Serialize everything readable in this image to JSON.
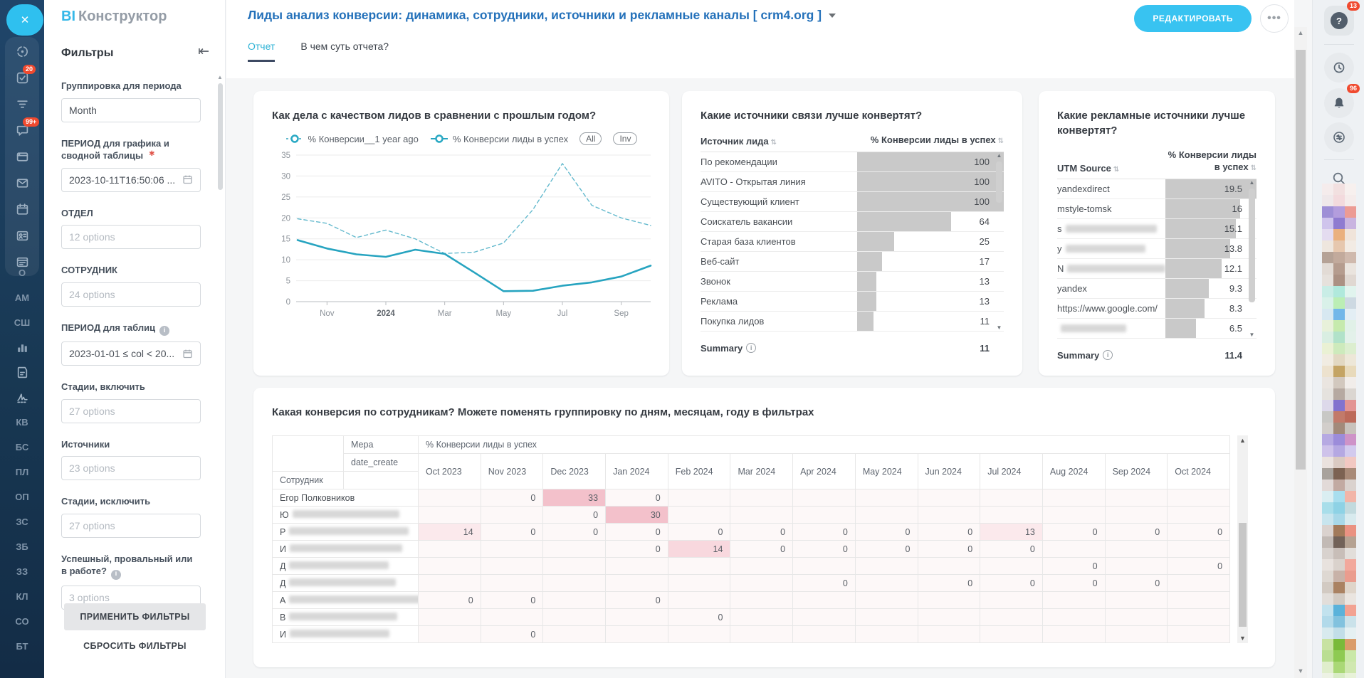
{
  "app": {
    "logo_primary": "BI",
    "logo_secondary": "Конструктор",
    "close_glyph": "✕"
  },
  "left_rail": {
    "apps": [
      {
        "icon": "pulse-icon"
      },
      {
        "icon": "tasks-icon",
        "badge": "20"
      },
      {
        "icon": "crm-funnel-icon"
      },
      {
        "icon": "messenger-icon",
        "badge": "99+"
      },
      {
        "icon": "sites-icon"
      },
      {
        "icon": "mail-icon"
      },
      {
        "icon": "calendar-icon"
      },
      {
        "icon": "contacts-icon"
      },
      {
        "icon": "automation-icon"
      }
    ],
    "shortcuts": [
      {
        "label": "О"
      },
      {
        "label": "АМ"
      },
      {
        "label": "СШ"
      },
      {
        "icon": "bar-chart-icon"
      },
      {
        "icon": "form-icon"
      },
      {
        "icon": "signature-icon"
      },
      {
        "label": "КВ"
      },
      {
        "label": "БС"
      },
      {
        "label": "ПЛ"
      },
      {
        "label": "ОП"
      },
      {
        "label": "ЗС"
      },
      {
        "label": "ЗБ"
      },
      {
        "label": "ЗЗ"
      },
      {
        "label": "КЛ"
      },
      {
        "label": "СО"
      },
      {
        "label": "БТ"
      }
    ]
  },
  "filters": {
    "title": "Фильтры",
    "apply_label": "ПРИМЕНИТЬ ФИЛЬТРЫ",
    "reset_label": "СБРОСИТЬ ФИЛЬТРЫ",
    "groups": [
      {
        "name": "period-grouping",
        "label": "Группировка для периода",
        "value": "Month",
        "type": "select",
        "filled": true
      },
      {
        "name": "chart-period",
        "label": "ПЕРИОД для графика и сводной таблицы",
        "required": true,
        "value": "2023-10-11T16:50:06 ...",
        "type": "date",
        "filled": true
      },
      {
        "name": "department",
        "label": "ОТДЕЛ",
        "value": "12 options",
        "type": "select"
      },
      {
        "name": "employee",
        "label": "СОТРУДНИК",
        "value": "24 options",
        "type": "select"
      },
      {
        "name": "table-period",
        "label": "ПЕРИОД для таблиц",
        "info": true,
        "value": "2023-01-01 ≤ col < 20...",
        "type": "date",
        "filled": true
      },
      {
        "name": "stages-include",
        "label": "Стадии, включить",
        "value": "27 options",
        "type": "select"
      },
      {
        "name": "sources",
        "label": "Источники",
        "value": "23 options",
        "type": "select"
      },
      {
        "name": "stages-exclude",
        "label": "Стадии, исключить",
        "value": "27 options",
        "type": "select"
      },
      {
        "name": "success-fail-progress",
        "label": "Успешный, провальный или в работе?",
        "info": true,
        "value": "3 options",
        "type": "select"
      }
    ]
  },
  "header": {
    "title": "Лиды анализ конверсии: динамика, сотрудники, источники и рекламные каналы [ crm4.org ]",
    "edit_label": "РЕДАКТИРОВАТЬ",
    "more_label": "•••",
    "tabs": [
      {
        "label": "Отчет",
        "active": true
      },
      {
        "label": "В чем суть отчета?",
        "active": false
      }
    ]
  },
  "right_rail": {
    "help_glyph": "?",
    "help_badge": "13",
    "notifications_badge": "96",
    "mosaic_rows": [
      [
        "#f5ecec",
        "#f2e0e0",
        "#f7f0ee"
      ],
      [
        "#efe8ea",
        "#f3dadd",
        "#f5eceb"
      ],
      [
        "#9e8fd6",
        "#b39ddd",
        "#ec9b94"
      ],
      [
        "#cfc4ec",
        "#8f7bd0",
        "#c9b4e0"
      ],
      [
        "#e4dcf0",
        "#eab07e",
        "#f0e4da"
      ],
      [
        "#eee6de",
        "#e6c7ae",
        "#f2ebe4"
      ],
      [
        "#b5a296",
        "#c2aa9c",
        "#cfb9ad"
      ],
      [
        "#e2dbd5",
        "#b59c8e",
        "#eae4de"
      ],
      [
        "#e6e1dc",
        "#ab9183",
        "#e0d8d2"
      ],
      [
        "#c9ede6",
        "#b0e9dc",
        "#e1f4ee"
      ],
      [
        "#d9f1e9",
        "#bbeeb5",
        "#cdd9e2"
      ],
      [
        "#d7e8f1",
        "#72b7e9",
        "#e3eef4"
      ],
      [
        "#e8f1da",
        "#c6eaad",
        "#e1f1e8"
      ],
      [
        "#d9eee2",
        "#b1e2c9",
        "#e3f1ea"
      ],
      [
        "#eaf1d4",
        "#cdeabc",
        "#dceecf"
      ],
      [
        "#f1ece2",
        "#e2d8c2",
        "#ede7d8"
      ],
      [
        "#ede2ce",
        "#c4a464",
        "#e8dabb"
      ],
      [
        "#eae5e0",
        "#d2c8be",
        "#f1edea"
      ],
      [
        "#e5e2de",
        "#b6a9a1",
        "#dbd6d1"
      ],
      [
        "#ddd9ea",
        "#8273ce",
        "#e39493"
      ],
      [
        "#c8c8c5",
        "#c27a6a",
        "#bc6a5a"
      ],
      [
        "#d2cecb",
        "#a28a7a",
        "#c8c2bc"
      ],
      [
        "#b6a9e2",
        "#9c8cda",
        "#ce93c8"
      ],
      [
        "#cec2ea",
        "#b5a8e2",
        "#d2caee"
      ],
      [
        "#eae2de",
        "#dacac2",
        "#f2c8c2"
      ],
      [
        "#a8a29c",
        "#7c6252",
        "#a88a78"
      ],
      [
        "#e2dad8",
        "#c2aaa2",
        "#dad2ce"
      ],
      [
        "#daeef2",
        "#a8deee",
        "#f2b5a8"
      ],
      [
        "#a8deea",
        "#8ed2e5",
        "#c2dade"
      ],
      [
        "#c8e5ee",
        "#a8d8e8",
        "#d8eaee"
      ],
      [
        "#dad2ce",
        "#a27a5a",
        "#ea9282"
      ],
      [
        "#c2bab5",
        "#726258",
        "#b5a292"
      ],
      [
        "#d8d2ce",
        "#c8beb8",
        "#e2deda"
      ],
      [
        "#e8e2de",
        "#dad2cc",
        "#f2a89c"
      ],
      [
        "#ded8d2",
        "#c8b2a8",
        "#ea9c8e"
      ],
      [
        "#d2cac2",
        "#aa8262",
        "#dfd5ca"
      ],
      [
        "#e2deda",
        "#d2cac2",
        "#eae5e0"
      ],
      [
        "#c2e2ee",
        "#5ab2da",
        "#f2a292"
      ],
      [
        "#b2daea",
        "#82c2de",
        "#cae2ea"
      ],
      [
        "#d8eaee",
        "#c2dee8",
        "#e5f0f2"
      ],
      [
        "#c8e2a2",
        "#7aba3a",
        "#da9c6a"
      ],
      [
        "#bade92",
        "#8eca52",
        "#cae8a8"
      ],
      [
        "#e0eecc",
        "#aad876",
        "#d0e8b0"
      ],
      [
        "#edf2e4",
        "#d8ecc4",
        "#e8f2d8"
      ]
    ]
  },
  "chart_data": [
    {
      "type": "line",
      "title": "Как дела с качеством лидов в сравнении с прошлым годом?",
      "x": [
        "Oct 2023",
        "Nov 2023",
        "Dec 2023",
        "Jan 2024",
        "Feb 2024",
        "Mar 2024",
        "Apr 2024",
        "May 2024",
        "Jun 2024",
        "Jul 2024",
        "Aug 2024",
        "Sep 2024",
        "Oct 2024"
      ],
      "x_tick_labels": [
        {
          "index": 1,
          "label": "Nov",
          "bold": false
        },
        {
          "index": 3,
          "label": "2024",
          "bold": true
        },
        {
          "index": 5,
          "label": "Mar",
          "bold": false
        },
        {
          "index": 7,
          "label": "May",
          "bold": false
        },
        {
          "index": 9,
          "label": "Jul",
          "bold": false
        },
        {
          "index": 11,
          "label": "Sep",
          "bold": false
        }
      ],
      "ylim": [
        0,
        35
      ],
      "yticks": [
        0,
        5,
        10,
        15,
        20,
        25,
        30,
        35
      ],
      "grid": true,
      "legend_position": "top",
      "legend_buttons": [
        "All",
        "Inv"
      ],
      "series": [
        {
          "name": "% Конверсии__1 year ago",
          "style": "dashed",
          "color": "#63b9cd",
          "values": [
            19.8,
            18.7,
            15.3,
            17.1,
            15.0,
            11.5,
            11.8,
            14.0,
            22.0,
            33.0,
            23.0,
            20.0,
            18.2
          ]
        },
        {
          "name": "% Конверсии лиды в успех",
          "style": "solid",
          "color": "#27a4c0",
          "values": [
            14.7,
            12.7,
            11.3,
            10.7,
            12.4,
            11.4,
            7.0,
            2.5,
            2.6,
            3.8,
            4.6,
            6.0,
            8.6
          ]
        }
      ]
    },
    {
      "type": "table",
      "title": "Какие источники связи лучше конвертят?",
      "columns": [
        "Источник лида",
        "% Конверсии лиды в успех"
      ],
      "bar_max": 100,
      "bar_color": "#c9c9c9",
      "rows": [
        {
          "name": "По рекомендации",
          "value": 100
        },
        {
          "name": "AVITO - Открытая линия",
          "value": 100
        },
        {
          "name": "Существующий клиент",
          "value": 100
        },
        {
          "name": "Соискатель вакансии",
          "value": 64
        },
        {
          "name": "Старая база клиентов",
          "value": 25
        },
        {
          "name": "Веб-сайт",
          "value": 17
        },
        {
          "name": "Звонок",
          "value": 13
        },
        {
          "name": "Реклама",
          "value": 13
        },
        {
          "name": "Покупка лидов",
          "value": 11
        }
      ],
      "summary_label": "Summary",
      "summary_value": "11"
    },
    {
      "type": "table",
      "title": "Какие рекламные источники лучше конвертят?",
      "columns": [
        "UTM Source",
        "% Конверсии лиды в успех"
      ],
      "bar_max": 19.5,
      "bar_color": "#c9c9c9",
      "rows": [
        {
          "name": "yandexdirect",
          "value": 19.5
        },
        {
          "name": "mstyle-tomsk",
          "value": 16
        },
        {
          "name": "s",
          "value": 15.1,
          "redacted": true,
          "redact_w": 128
        },
        {
          "name": "y",
          "value": 13.8,
          "redacted": true,
          "redact_w": 112
        },
        {
          "name": "N",
          "value": 12.1,
          "redacted": true,
          "redact_w": 140
        },
        {
          "name": "yandex",
          "value": 9.3
        },
        {
          "name": "https://www.google.com/",
          "value": 8.3
        },
        {
          "name": "",
          "value": 6.5,
          "redacted": true,
          "redact_w": 92
        }
      ],
      "summary_label": "Summary",
      "summary_value": "11.4"
    },
    {
      "type": "heatmap-table",
      "title": "Какая конверсия по сотрудникам? Можете поменять группировку по дням, месяцам, году в фильтрах",
      "measure_label": "Мера",
      "measure_value": "% Конверсии лиды в успех",
      "date_label": "date_create",
      "row_dim_label": "Сотрудник",
      "columns": [
        "Oct 2023",
        "Nov 2023",
        "Dec 2023",
        "Jan 2024",
        "Feb 2024",
        "Mar 2024",
        "Apr 2024",
        "May 2024",
        "Jun 2024",
        "Jul 2024",
        "Aug 2024",
        "Sep 2024",
        "Oct 2024"
      ],
      "rows": [
        {
          "name": "Егор Полковников",
          "redacted": false,
          "redact_w": 0,
          "values": [
            "",
            "0",
            "33",
            "0",
            "",
            "",
            "",
            "",
            "",
            "",
            "",
            "",
            ""
          ],
          "highlights": {
            "2": "strong"
          }
        },
        {
          "name": "Ю",
          "redacted": true,
          "redact_w": 150,
          "values": [
            "",
            "",
            "0",
            "30",
            "",
            "",
            "",
            "",
            "",
            "",
            "",
            "",
            ""
          ],
          "highlights": {
            "3": "strong"
          }
        },
        {
          "name": "Р",
          "redacted": true,
          "redact_w": 168,
          "values": [
            "14",
            "0",
            "0",
            "0",
            "0",
            "0",
            "0",
            "0",
            "0",
            "13",
            "0",
            "0",
            "0"
          ],
          "highlights": {
            "0": "light",
            "9": "light"
          }
        },
        {
          "name": "И",
          "redacted": true,
          "redact_w": 158,
          "values": [
            "",
            "",
            "",
            "0",
            "14",
            "0",
            "0",
            "0",
            "0",
            "0",
            "",
            "",
            ""
          ],
          "highlights": {
            "4": "medium"
          }
        },
        {
          "name": "Д",
          "redacted": true,
          "redact_w": 140,
          "values": [
            "",
            "",
            "",
            "",
            "",
            "",
            "",
            "",
            "",
            "",
            "0",
            "",
            "0"
          ],
          "highlights": {}
        },
        {
          "name": "Д",
          "redacted": true,
          "redact_w": 150,
          "values": [
            "",
            "",
            "",
            "",
            "",
            "",
            "0",
            "",
            "0",
            "0",
            "0",
            "0",
            ""
          ],
          "highlights": {}
        },
        {
          "name": "А",
          "redacted": true,
          "redact_w": 188,
          "values": [
            "0",
            "0",
            "",
            "0",
            "",
            "",
            "",
            "",
            "",
            "",
            "",
            "",
            ""
          ],
          "highlights": {}
        },
        {
          "name": "В",
          "redacted": true,
          "redact_w": 152,
          "values": [
            "",
            "",
            "",
            "",
            "0",
            "",
            "",
            "",
            "",
            "",
            "",
            "",
            ""
          ],
          "highlights": {}
        },
        {
          "name": "И",
          "redacted": true,
          "redact_w": 140,
          "values": [
            "",
            "0",
            "",
            "",
            "",
            "",
            "",
            "",
            "",
            "",
            "",
            "",
            ""
          ],
          "highlights": {}
        }
      ]
    }
  ]
}
